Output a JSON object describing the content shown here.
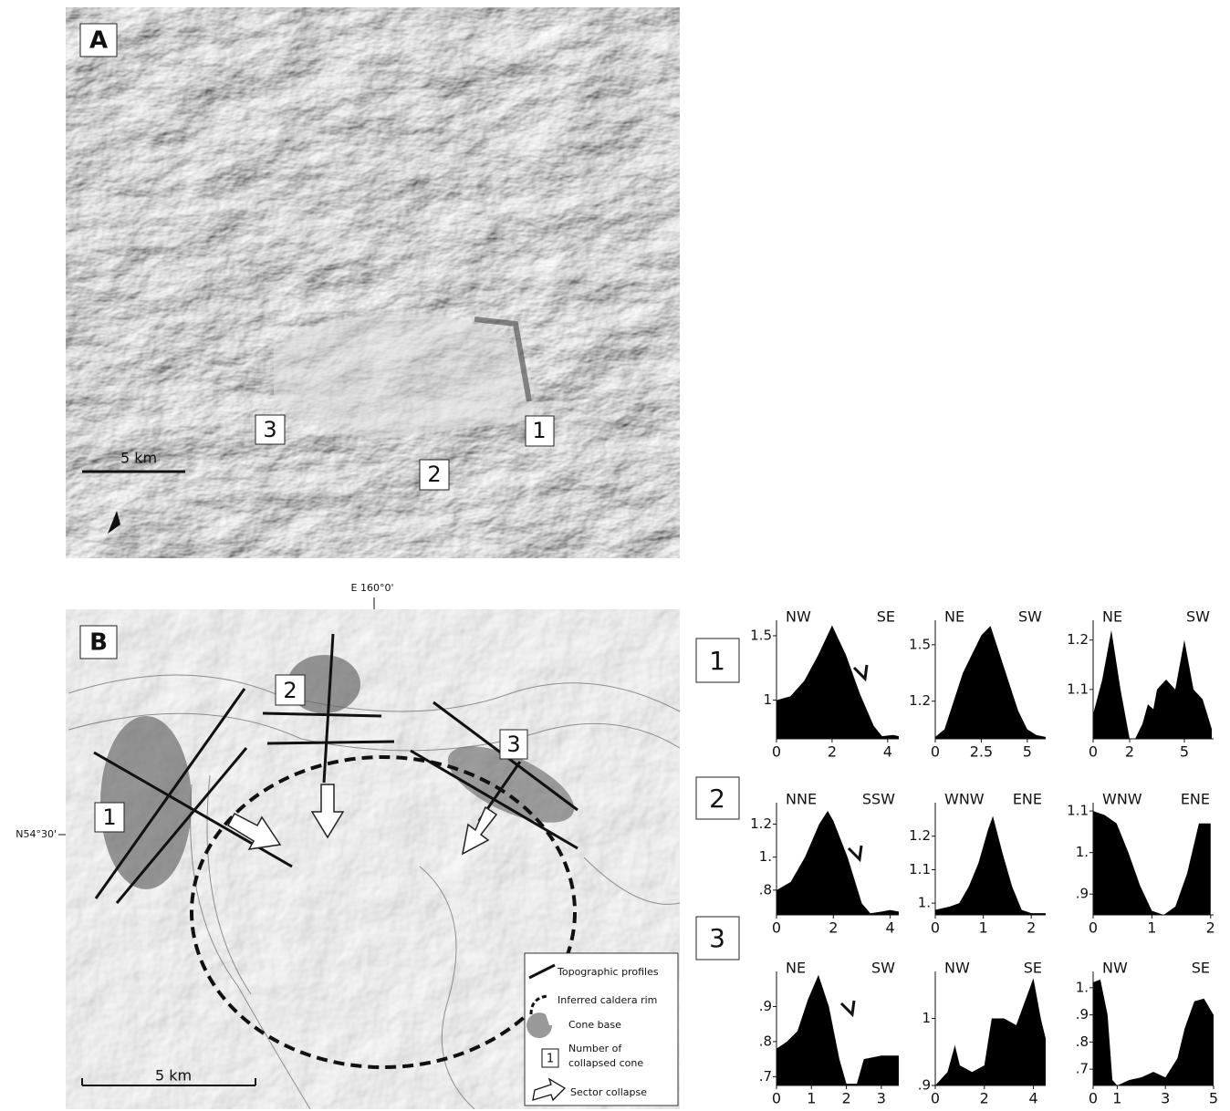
{
  "panel_a": {
    "label": "A",
    "cones": [
      "3",
      "1",
      "2"
    ],
    "scale": "5  km"
  },
  "panel_b": {
    "label": "B",
    "cones": [
      "2",
      "3",
      "1"
    ],
    "scale": "5  km",
    "longitude": "E 160°0'",
    "latitude": "N54°30'",
    "legend": [
      "Topographic profiles",
      "Inferred caldera rim",
      "Cone base",
      "Number of",
      "collapsed cone",
      "Sector collapse"
    ],
    "legend_box": "1"
  },
  "row_labels": [
    "1",
    "2",
    "3"
  ],
  "chart_data": [
    {
      "type": "area",
      "labels": [
        "NW",
        "SE"
      ],
      "x": [
        0,
        0.5,
        1,
        1.5,
        2,
        2.5,
        3,
        3.5,
        3.8,
        4.2,
        4.4
      ],
      "values": [
        1.0,
        1.03,
        1.15,
        1.35,
        1.58,
        1.35,
        1.05,
        0.8,
        0.72,
        0.73,
        0.72
      ],
      "xlim": [
        0,
        4.4
      ],
      "ylim": [
        0.7,
        1.62
      ],
      "xticks": [
        0,
        2,
        4
      ],
      "yticks": [
        1.5,
        1
      ]
    },
    {
      "type": "area",
      "labels": [
        "NE",
        "SW"
      ],
      "x": [
        0,
        0.5,
        1,
        1.5,
        2,
        2.5,
        3,
        3.5,
        4,
        4.5,
        5,
        5.5,
        6
      ],
      "values": [
        1.01,
        1.05,
        1.2,
        1.35,
        1.45,
        1.55,
        1.6,
        1.45,
        1.3,
        1.15,
        1.05,
        1.02,
        1.01
      ],
      "xlim": [
        0,
        6
      ],
      "ylim": [
        1.0,
        1.63
      ],
      "xticks": [
        0,
        2.5,
        5
      ],
      "yticks": [
        1.5,
        1.2
      ]
    },
    {
      "type": "area",
      "labels": [
        "NE",
        "SW"
      ],
      "x": [
        0,
        0.5,
        1,
        1.5,
        2,
        2.3,
        2.7,
        3,
        3.3,
        3.5,
        4,
        4.5,
        5,
        5.5,
        6,
        6.5
      ],
      "values": [
        1.05,
        1.12,
        1.22,
        1.1,
        1.0,
        1.0,
        1.03,
        1.07,
        1.06,
        1.1,
        1.12,
        1.1,
        1.2,
        1.1,
        1.08,
        1.02
      ],
      "xlim": [
        0,
        6.6
      ],
      "ylim": [
        1.0,
        1.24
      ],
      "xticks": [
        0,
        2,
        5
      ],
      "yticks": [
        1.2,
        1.1
      ]
    },
    {
      "type": "area",
      "labels": [
        "NNE",
        "SSW"
      ],
      "x": [
        0,
        0.5,
        1,
        1.5,
        1.8,
        2,
        2.5,
        3,
        3.3,
        3.7,
        4,
        4.3
      ],
      "values": [
        0.8,
        0.85,
        1.0,
        1.2,
        1.28,
        1.22,
        1.0,
        0.72,
        0.66,
        0.67,
        0.68,
        0.67
      ],
      "xlim": [
        0,
        4.3
      ],
      "ylim": [
        0.65,
        1.33
      ],
      "xticks": [
        0,
        2,
        4
      ],
      "yticks": [
        1.2,
        {
          "value": 1,
          "label": "1."
        },
        {
          "value": 0.8,
          "label": ".8"
        }
      ]
    },
    {
      "type": "area",
      "labels": [
        "WNW",
        "ENE"
      ],
      "x": [
        0,
        0.3,
        0.5,
        0.7,
        0.9,
        1.1,
        1.2,
        1.4,
        1.6,
        1.8,
        2,
        2.3
      ],
      "values": [
        0.98,
        0.99,
        1.0,
        1.05,
        1.12,
        1.22,
        1.26,
        1.15,
        1.05,
        0.98,
        0.97,
        0.97
      ],
      "xlim": [
        0,
        2.3
      ],
      "ylim": [
        0.965,
        1.3
      ],
      "xticks": [
        0,
        1,
        2
      ],
      "yticks": [
        1.2,
        1.1,
        {
          "value": 1,
          "label": "1."
        }
      ]
    },
    {
      "type": "area",
      "labels": [
        "WNW",
        "ENE"
      ],
      "x": [
        0,
        0.2,
        0.4,
        0.6,
        0.8,
        1,
        1.2,
        1.4,
        1.6,
        1.8,
        2
      ],
      "values": [
        1.1,
        1.09,
        1.07,
        1.0,
        0.92,
        0.86,
        0.85,
        0.87,
        0.95,
        1.07,
        1.07
      ],
      "xlim": [
        0,
        2.05
      ],
      "ylim": [
        0.85,
        1.12
      ],
      "xticks": [
        0,
        1,
        2
      ],
      "yticks": [
        1.1,
        {
          "value": 1,
          "label": "1."
        },
        {
          "value": 0.9,
          "label": ".9"
        }
      ]
    },
    {
      "type": "area",
      "labels": [
        "NE",
        "SW"
      ],
      "x": [
        0,
        0.3,
        0.6,
        0.9,
        1.2,
        1.5,
        1.8,
        2,
        2.3,
        2.5,
        3,
        3.5
      ],
      "values": [
        0.78,
        0.8,
        0.83,
        0.92,
        0.99,
        0.9,
        0.75,
        0.68,
        0.68,
        0.75,
        0.76,
        0.76
      ],
      "xlim": [
        0,
        3.5
      ],
      "ylim": [
        0.675,
        1.0
      ],
      "xticks": [
        0,
        1,
        2,
        3
      ],
      "yticks": [
        {
          "value": 0.9,
          "label": ".9"
        },
        {
          "value": 0.8,
          "label": ".8"
        },
        {
          "value": 0.7,
          "label": ".7"
        }
      ]
    },
    {
      "type": "area",
      "labels": [
        "NW",
        "SE"
      ],
      "x": [
        0,
        0.5,
        0.8,
        1,
        1.5,
        2,
        2.3,
        2.8,
        3.3,
        3.6,
        4,
        4.3,
        4.5
      ],
      "values": [
        0.9,
        0.92,
        0.96,
        0.93,
        0.92,
        0.93,
        1.0,
        1.0,
        0.99,
        1.02,
        1.06,
        1.0,
        0.97
      ],
      "xlim": [
        0,
        4.5
      ],
      "ylim": [
        0.9,
        1.07
      ],
      "xticks": [
        0,
        2,
        4
      ],
      "yticks": [
        1,
        {
          "value": 0.9,
          "label": ".9"
        }
      ]
    },
    {
      "type": "area",
      "labels": [
        "NW",
        "SE"
      ],
      "x": [
        0,
        0.3,
        0.6,
        0.8,
        1,
        1.5,
        2,
        2.5,
        3,
        3.5,
        3.8,
        4.2,
        4.6,
        5
      ],
      "values": [
        1.02,
        1.03,
        0.9,
        0.66,
        0.64,
        0.66,
        0.67,
        0.69,
        0.67,
        0.74,
        0.85,
        0.95,
        0.96,
        0.9
      ],
      "xlim": [
        0,
        5
      ],
      "ylim": [
        0.64,
        1.06
      ],
      "xticks": [
        0,
        1,
        3,
        5
      ],
      "yticks": [
        {
          "value": 1,
          "label": "1."
        },
        {
          "value": 0.9,
          "label": ".9"
        },
        {
          "value": 0.8,
          "label": ".8"
        },
        {
          "value": 0.7,
          "label": ".7"
        }
      ]
    }
  ]
}
